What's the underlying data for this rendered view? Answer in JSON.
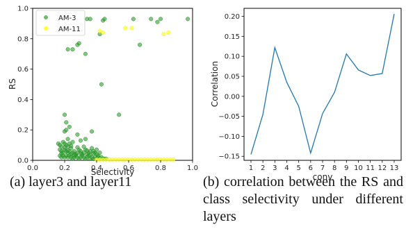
{
  "chart_data": [
    {
      "type": "scatter",
      "xlabel": "Selectivity",
      "ylabel": "RS",
      "xlim": [
        0.0,
        1.0
      ],
      "ylim": [
        0.0,
        1.0
      ],
      "xticks": [
        "0.0",
        "0.2",
        "0.4",
        "0.6",
        "0.8",
        "1.0"
      ],
      "yticks": [
        "0.0",
        "0.2",
        "0.4",
        "0.6",
        "0.8",
        "1.0"
      ],
      "legend_position": "top-left",
      "grid": false,
      "series": [
        {
          "name": "AM-3",
          "color": "#2ca02c",
          "points": [
            [
              0.34,
              0.93
            ],
            [
              0.36,
              0.93
            ],
            [
              0.44,
              0.92
            ],
            [
              0.45,
              0.93
            ],
            [
              0.63,
              0.93
            ],
            [
              0.74,
              0.93
            ],
            [
              0.78,
              0.91
            ],
            [
              0.8,
              0.93
            ],
            [
              0.97,
              0.93
            ],
            [
              0.42,
              0.83
            ],
            [
              0.22,
              0.73
            ],
            [
              0.25,
              0.73
            ],
            [
              0.28,
              0.76
            ],
            [
              0.29,
              0.77
            ],
            [
              0.33,
              0.7
            ],
            [
              0.67,
              0.76
            ],
            [
              0.43,
              0.5
            ],
            [
              0.54,
              0.3
            ],
            [
              0.2,
              0.3
            ],
            [
              0.21,
              0.25
            ],
            [
              0.23,
              0.22
            ],
            [
              0.2,
              0.19
            ],
            [
              0.21,
              0.2
            ],
            [
              0.37,
              0.19
            ],
            [
              0.28,
              0.17
            ],
            [
              0.33,
              0.14
            ],
            [
              0.3,
              0.13
            ],
            [
              0.22,
              0.14
            ],
            [
              0.25,
              0.12
            ],
            [
              0.16,
              0.11
            ],
            [
              0.17,
              0.1
            ],
            [
              0.18,
              0.09
            ],
            [
              0.19,
              0.12
            ],
            [
              0.2,
              0.11
            ],
            [
              0.21,
              0.1
            ],
            [
              0.22,
              0.09
            ],
            [
              0.23,
              0.11
            ],
            [
              0.24,
              0.08
            ],
            [
              0.17,
              0.07
            ],
            [
              0.18,
              0.06
            ],
            [
              0.19,
              0.05
            ],
            [
              0.2,
              0.07
            ],
            [
              0.21,
              0.06
            ],
            [
              0.22,
              0.05
            ],
            [
              0.23,
              0.06
            ],
            [
              0.24,
              0.04
            ],
            [
              0.25,
              0.05
            ],
            [
              0.26,
              0.06
            ],
            [
              0.27,
              0.04
            ],
            [
              0.28,
              0.05
            ],
            [
              0.29,
              0.07
            ],
            [
              0.3,
              0.06
            ],
            [
              0.31,
              0.04
            ],
            [
              0.32,
              0.05
            ],
            [
              0.33,
              0.07
            ],
            [
              0.34,
              0.04
            ],
            [
              0.35,
              0.05
            ],
            [
              0.36,
              0.06
            ],
            [
              0.37,
              0.08
            ],
            [
              0.38,
              0.06
            ],
            [
              0.39,
              0.05
            ],
            [
              0.4,
              0.04
            ],
            [
              0.41,
              0.03
            ],
            [
              0.42,
              0.05
            ],
            [
              0.17,
              0.03
            ],
            [
              0.18,
              0.02
            ],
            [
              0.19,
              0.03
            ],
            [
              0.2,
              0.02
            ],
            [
              0.21,
              0.03
            ],
            [
              0.22,
              0.02
            ],
            [
              0.23,
              0.03
            ],
            [
              0.24,
              0.02
            ],
            [
              0.25,
              0.01
            ],
            [
              0.26,
              0.02
            ],
            [
              0.27,
              0.03
            ],
            [
              0.28,
              0.02
            ],
            [
              0.29,
              0.01
            ],
            [
              0.3,
              0.02
            ],
            [
              0.31,
              0.03
            ],
            [
              0.32,
              0.02
            ],
            [
              0.33,
              0.01
            ],
            [
              0.34,
              0.02
            ],
            [
              0.35,
              0.03
            ],
            [
              0.36,
              0.01
            ],
            [
              0.37,
              0.02
            ],
            [
              0.38,
              0.01
            ],
            [
              0.39,
              0.02
            ],
            [
              0.4,
              0.01
            ],
            [
              0.41,
              0.02
            ],
            [
              0.42,
              0.01
            ],
            [
              0.43,
              0.02
            ],
            [
              0.44,
              0.01
            ],
            [
              0.45,
              0.01
            ],
            [
              0.46,
              0.01
            ],
            [
              0.18,
              0.045
            ],
            [
              0.2,
              0.085
            ],
            [
              0.22,
              0.065
            ],
            [
              0.24,
              0.095
            ],
            [
              0.26,
              0.035
            ],
            [
              0.28,
              0.085
            ],
            [
              0.3,
              0.045
            ],
            [
              0.32,
              0.09
            ],
            [
              0.34,
              0.065
            ],
            [
              0.36,
              0.035
            ],
            [
              0.38,
              0.045
            ],
            [
              0.4,
              0.07
            ]
          ]
        },
        {
          "name": "AM-11",
          "color": "#ffff33",
          "points": [
            [
              0.42,
              0.85
            ],
            [
              0.44,
              0.84
            ],
            [
              0.58,
              0.87
            ],
            [
              0.62,
              0.87
            ],
            [
              0.82,
              0.83
            ],
            [
              0.85,
              0.84
            ],
            [
              0.4,
              0.005
            ],
            [
              0.42,
              0.005
            ],
            [
              0.44,
              0.005
            ],
            [
              0.46,
              0.005
            ],
            [
              0.48,
              0.005
            ],
            [
              0.5,
              0.005
            ],
            [
              0.52,
              0.005
            ],
            [
              0.54,
              0.005
            ],
            [
              0.56,
              0.005
            ],
            [
              0.58,
              0.005
            ],
            [
              0.6,
              0.005
            ],
            [
              0.62,
              0.005
            ],
            [
              0.64,
              0.005
            ],
            [
              0.66,
              0.005
            ],
            [
              0.68,
              0.005
            ],
            [
              0.7,
              0.005
            ],
            [
              0.72,
              0.005
            ],
            [
              0.74,
              0.005
            ],
            [
              0.76,
              0.005
            ],
            [
              0.78,
              0.005
            ],
            [
              0.8,
              0.005
            ],
            [
              0.82,
              0.005
            ],
            [
              0.84,
              0.005
            ],
            [
              0.86,
              0.005
            ],
            [
              0.88,
              0.005
            ]
          ]
        }
      ]
    },
    {
      "type": "line",
      "xlabel": "conv",
      "ylabel": "Correlation",
      "categories": [
        "1",
        "2",
        "3",
        "4",
        "5",
        "6",
        "7",
        "8",
        "9",
        "10",
        "11",
        "12",
        "13"
      ],
      "ylim": [
        -0.16,
        0.22
      ],
      "yticks": [
        "−0.15",
        "−0.10",
        "−0.05",
        "0.00",
        "0.05",
        "0.10",
        "0.15",
        "0.20"
      ],
      "ytick_values": [
        -0.15,
        -0.1,
        -0.05,
        0.0,
        0.05,
        0.1,
        0.15,
        0.2
      ],
      "grid": false,
      "series": [
        {
          "color": "#1f77b4",
          "values": [
            -0.145,
            -0.045,
            0.122,
            0.035,
            -0.025,
            -0.142,
            -0.043,
            0.01,
            0.106,
            0.066,
            0.052,
            0.057,
            0.206
          ]
        }
      ]
    }
  ],
  "captions": {
    "a": "(a) layer3 and layer11",
    "b": "(b) correlation between the RS and class selectivity under different layers"
  }
}
